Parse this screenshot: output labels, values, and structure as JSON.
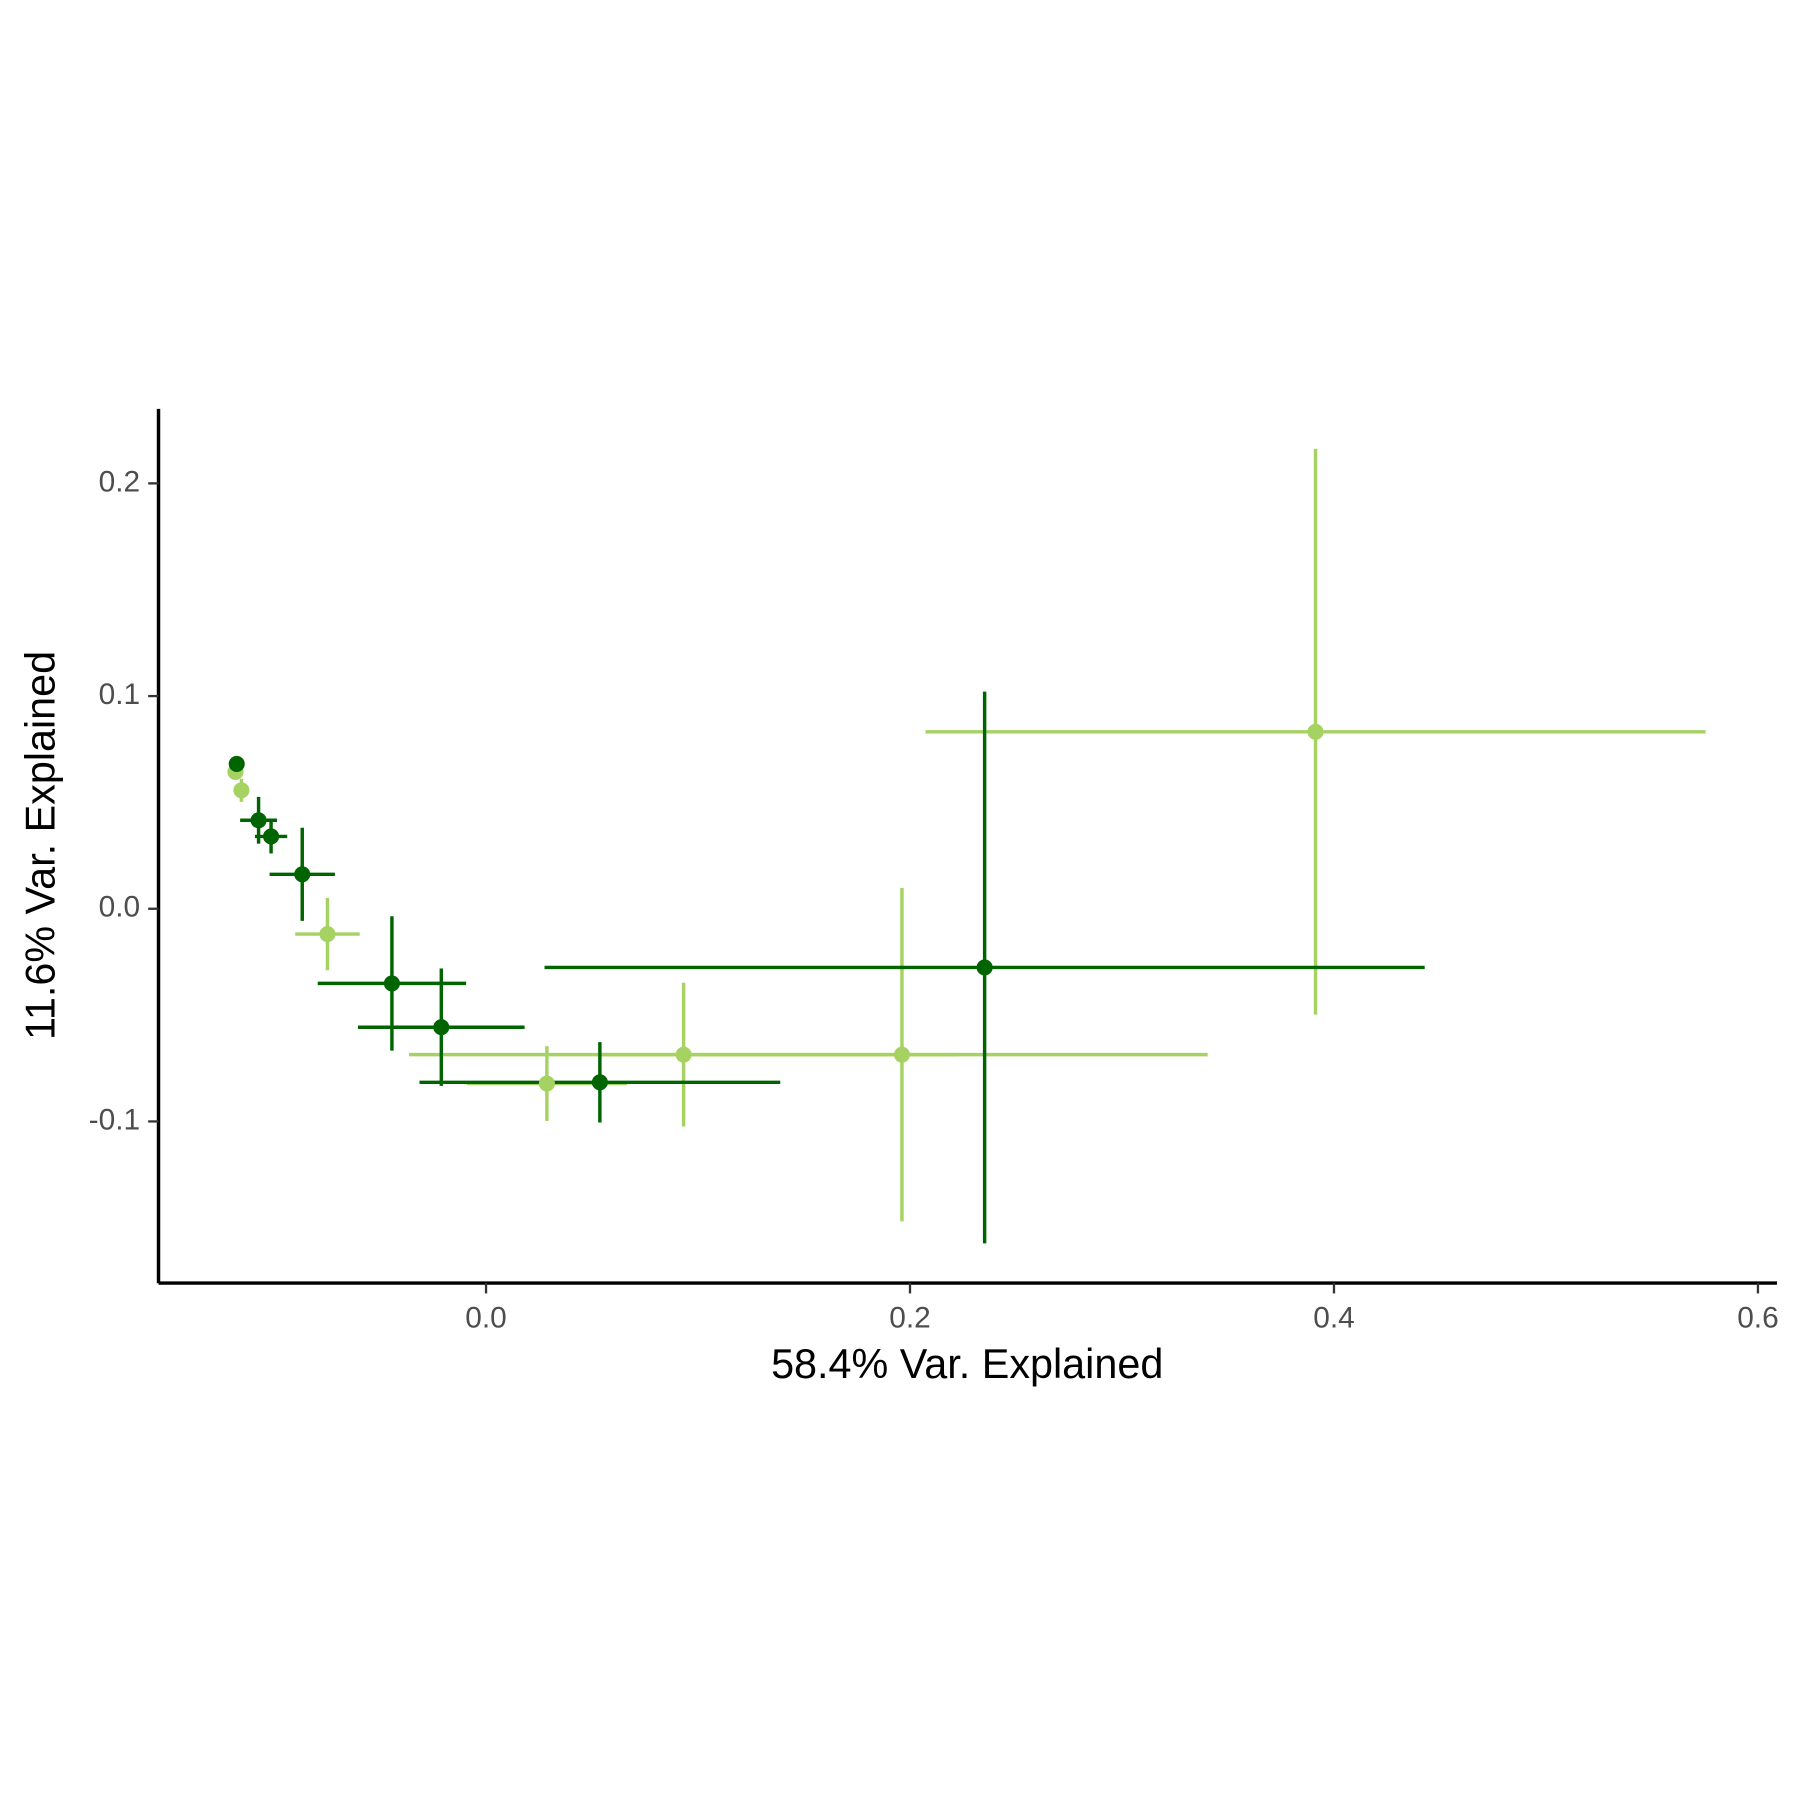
{
  "chart_data": {
    "type": "scatter",
    "x_label": "58.4% Var. Explained",
    "y_label": "11.6% Var. Explained",
    "xlim": [
      -0.1545,
      0.609
    ],
    "ylim": [
      -0.176,
      0.235
    ],
    "xticks": [
      {
        "value": 0,
        "label": "0.0"
      },
      0.2,
      0.4,
      0.6
    ],
    "yticks": [
      -0.1,
      {
        "value": 0,
        "label": "0.0"
      },
      0.1,
      0.2
    ],
    "grid": false,
    "series": [
      {
        "color": "#a6d262",
        "x": [
          -0.1182,
          -0.1154,
          -0.0748,
          0.0287,
          0.0932,
          0.1962,
          0.3913
        ],
        "values": [
          0.0643,
          0.0557,
          -0.0119,
          -0.0822,
          -0.0686,
          -0.0686,
          0.0832
        ],
        "xerr": [
          0.002,
          0.003,
          0.0152,
          0.0379,
          0.1295,
          0.1442,
          0.184
        ],
        "yerr": [
          0.002,
          0.0054,
          0.017,
          0.0176,
          0.0338,
          0.0784,
          0.133
        ]
      },
      {
        "color": "#006400",
        "x": [
          -0.1176,
          -0.1073,
          -0.1014,
          -0.0867,
          -0.0444,
          -0.0211,
          0.0537,
          0.2352
        ],
        "values": [
          0.0681,
          0.0416,
          0.034,
          0.0162,
          -0.0351,
          -0.0557,
          -0.0816,
          -0.0276
        ],
        "xerr": [
          0.002,
          0.0087,
          0.0076,
          0.0154,
          0.035,
          0.0393,
          0.0851,
          0.2076
        ],
        "yerr": [
          0.002,
          0.011,
          0.008,
          0.0219,
          0.0316,
          0.0276,
          0.0189,
          0.1297
        ]
      }
    ]
  }
}
